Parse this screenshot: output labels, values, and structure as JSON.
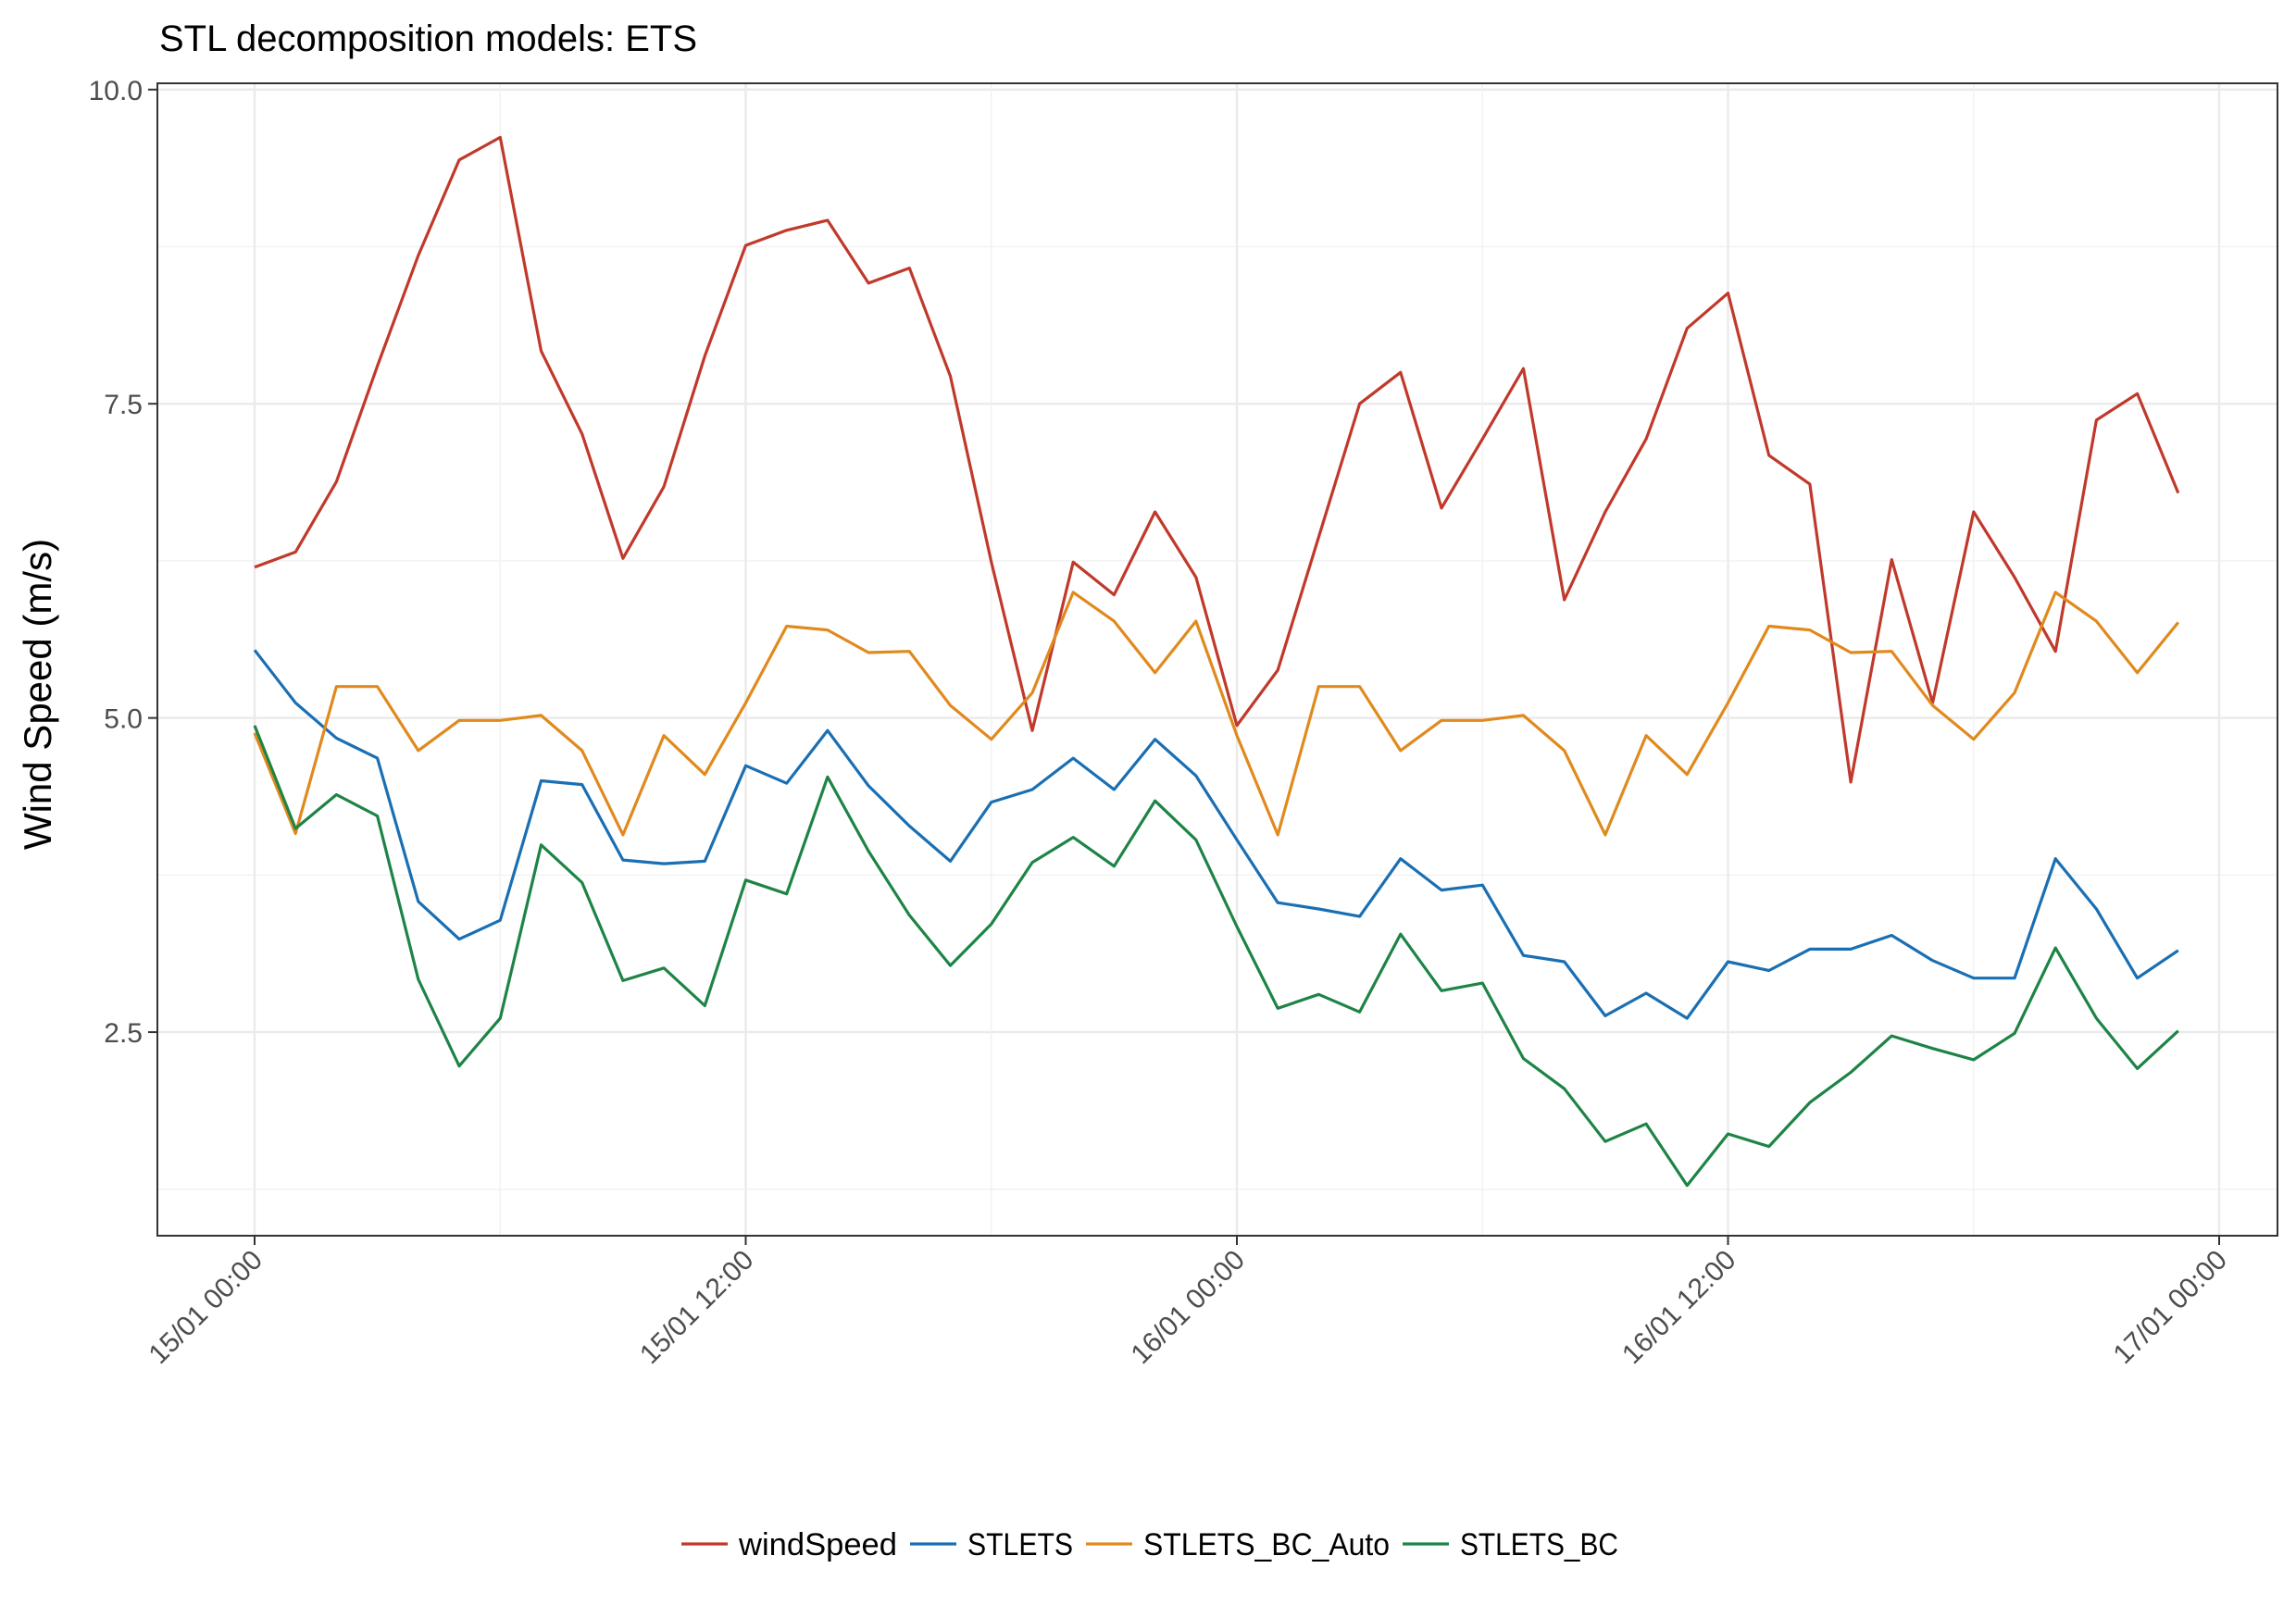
{
  "chart_data": {
    "type": "line",
    "title": "STL decomposition models: ETS",
    "xlabel": "",
    "ylabel": "Wind Speed (m/s)",
    "x": [
      "15/01 00:00",
      "15/01 01:00",
      "15/01 02:00",
      "15/01 03:00",
      "15/01 04:00",
      "15/01 05:00",
      "15/01 06:00",
      "15/01 07:00",
      "15/01 08:00",
      "15/01 09:00",
      "15/01 10:00",
      "15/01 11:00",
      "15/01 12:00",
      "15/01 13:00",
      "15/01 14:00",
      "15/01 15:00",
      "15/01 16:00",
      "15/01 17:00",
      "15/01 18:00",
      "15/01 19:00",
      "15/01 20:00",
      "15/01 21:00",
      "15/01 22:00",
      "15/01 23:00",
      "16/01 00:00",
      "16/01 01:00",
      "16/01 02:00",
      "16/01 03:00",
      "16/01 04:00",
      "16/01 05:00",
      "16/01 06:00",
      "16/01 07:00",
      "16/01 08:00",
      "16/01 09:00",
      "16/01 10:00",
      "16/01 11:00",
      "16/01 12:00",
      "16/01 13:00",
      "16/01 14:00",
      "16/01 15:00",
      "16/01 16:00",
      "16/01 17:00",
      "16/01 18:00",
      "16/01 19:00",
      "16/01 20:00",
      "16/01 21:00",
      "16/01 22:00",
      "16/01 23:00"
    ],
    "x_ticks": [
      "15/01 00:00",
      "15/01 12:00",
      "16/01 00:00",
      "16/01 12:00",
      "17/01 00:00"
    ],
    "y_ticks": [
      2.5,
      5.0,
      7.5,
      10.0
    ],
    "y_tick_labels": [
      "2.5",
      "5.0",
      "7.5",
      "10.0"
    ],
    "ylim": [
      0.88,
      10.05
    ],
    "grid": true,
    "legend_position": "bottom",
    "series": [
      {
        "name": "windSpeed",
        "color": "#c0392b",
        "values": [
          6.2,
          6.32,
          6.88,
          7.8,
          8.68,
          9.44,
          9.62,
          7.92,
          7.26,
          6.27,
          6.84,
          7.88,
          8.76,
          8.88,
          8.96,
          8.46,
          8.58,
          7.72,
          6.24,
          4.9,
          6.24,
          5.98,
          6.64,
          6.12,
          4.94,
          5.38,
          6.44,
          7.5,
          7.75,
          6.67,
          7.22,
          7.78,
          5.94,
          6.64,
          7.22,
          8.1,
          8.38,
          7.09,
          6.86,
          4.49,
          6.26,
          5.12,
          6.64,
          6.12,
          5.53,
          7.37,
          7.58,
          6.79
        ]
      },
      {
        "name": "STLETS",
        "color": "#1a6fb3",
        "values": [
          5.54,
          5.12,
          4.84,
          4.68,
          3.54,
          3.24,
          3.39,
          4.5,
          4.47,
          3.87,
          3.84,
          3.86,
          4.62,
          4.48,
          4.9,
          4.46,
          4.14,
          3.86,
          4.33,
          4.43,
          4.68,
          4.43,
          4.83,
          4.54,
          4.03,
          3.53,
          3.48,
          3.42,
          3.88,
          3.63,
          3.67,
          3.11,
          3.06,
          2.63,
          2.81,
          2.61,
          3.06,
          2.99,
          3.16,
          3.16,
          3.27,
          3.07,
          2.93,
          2.93,
          3.88,
          3.48,
          2.93,
          3.15
        ]
      },
      {
        "name": "STLETS_BC_Auto",
        "color": "#e08a1e",
        "values": [
          4.88,
          4.08,
          5.25,
          5.25,
          4.74,
          4.98,
          4.98,
          5.02,
          4.74,
          4.07,
          4.86,
          4.55,
          5.12,
          5.73,
          5.7,
          5.52,
          5.53,
          5.1,
          4.83,
          5.2,
          6.0,
          5.77,
          5.36,
          5.77,
          4.86,
          4.07,
          5.25,
          5.25,
          4.74,
          4.98,
          4.98,
          5.02,
          4.74,
          4.07,
          4.86,
          4.55,
          5.12,
          5.73,
          5.7,
          5.52,
          5.53,
          5.1,
          4.83,
          5.2,
          6.0,
          5.77,
          5.36,
          5.76
        ]
      },
      {
        "name": "STLETS_BC",
        "color": "#1e8446",
        "values": [
          4.94,
          4.12,
          4.39,
          4.22,
          2.92,
          2.23,
          2.61,
          3.99,
          3.69,
          2.91,
          3.01,
          2.71,
          3.71,
          3.6,
          4.53,
          3.94,
          3.43,
          3.03,
          3.36,
          3.85,
          4.05,
          3.82,
          4.34,
          4.03,
          3.34,
          2.69,
          2.8,
          2.66,
          3.28,
          2.83,
          2.89,
          2.29,
          2.05,
          1.63,
          1.77,
          1.28,
          1.69,
          1.59,
          1.94,
          2.18,
          2.47,
          2.37,
          2.28,
          2.49,
          3.17,
          2.61,
          2.21,
          2.51
        ]
      }
    ]
  }
}
